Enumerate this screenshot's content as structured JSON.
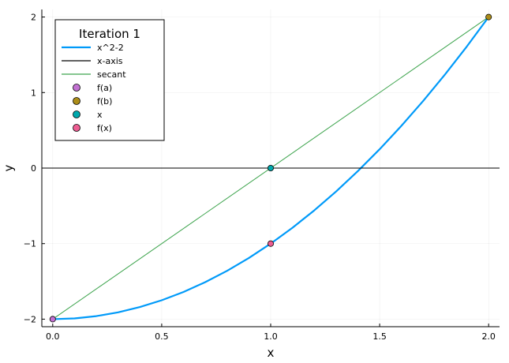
{
  "chart_data": {
    "type": "line",
    "xlabel": "x",
    "ylabel": "y",
    "xlim": [
      -0.05,
      2.05
    ],
    "ylim": [
      -2.1,
      2.1
    ],
    "xticks": [
      0.0,
      0.5,
      1.0,
      1.5,
      2.0
    ],
    "xtick_labels": [
      "0.0",
      "0.5",
      "1.0",
      "1.5",
      "2.0"
    ],
    "yticks": [
      -2,
      -1,
      0,
      1,
      2
    ],
    "ytick_labels": [
      "−2",
      "−1",
      "0",
      "1",
      "2"
    ],
    "grid": true,
    "legend": {
      "title": "Iteration 1",
      "position": "top-left",
      "entries": [
        {
          "label": "x^2-2",
          "kind": "line",
          "color": "#009AF9"
        },
        {
          "label": "x-axis",
          "kind": "line",
          "color": "#000000"
        },
        {
          "label": "secant",
          "kind": "line",
          "color": "#3DA44D"
        },
        {
          "label": "f(a)",
          "kind": "marker",
          "color": "#C271D2"
        },
        {
          "label": "f(b)",
          "kind": "marker",
          "color": "#AC8D18"
        },
        {
          "label": "x",
          "kind": "marker",
          "color": "#00A9AD"
        },
        {
          "label": "f(x)",
          "kind": "marker",
          "color": "#ED5D92"
        }
      ]
    },
    "series": [
      {
        "name": "x^2-2",
        "type": "line",
        "color": "#009AF9",
        "x": [
          0.0,
          0.1,
          0.2,
          0.3,
          0.4,
          0.5,
          0.6,
          0.7,
          0.8,
          0.9,
          1.0,
          1.1,
          1.2,
          1.3,
          1.4,
          1.5,
          1.6,
          1.7,
          1.8,
          1.9,
          2.0
        ],
        "y": [
          -2.0,
          -1.99,
          -1.96,
          -1.91,
          -1.84,
          -1.75,
          -1.64,
          -1.51,
          -1.36,
          -1.19,
          -1.0,
          -0.79,
          -0.56,
          -0.31,
          -0.04,
          0.25,
          0.56,
          0.89,
          1.24,
          1.61,
          2.0
        ]
      },
      {
        "name": "x-axis",
        "type": "line",
        "color": "#000000",
        "x": [
          -0.05,
          2.05
        ],
        "y": [
          0,
          0
        ]
      },
      {
        "name": "secant",
        "type": "line",
        "color": "#3DA44D",
        "x": [
          0.0,
          2.0
        ],
        "y": [
          -2.0,
          2.0
        ]
      },
      {
        "name": "f(a)",
        "type": "scatter",
        "color": "#C271D2",
        "x": [
          0.0
        ],
        "y": [
          -2.0
        ]
      },
      {
        "name": "f(b)",
        "type": "scatter",
        "color": "#AC8D18",
        "x": [
          2.0
        ],
        "y": [
          2.0
        ]
      },
      {
        "name": "x",
        "type": "scatter",
        "color": "#00A9AD",
        "x": [
          1.0
        ],
        "y": [
          0.0
        ]
      },
      {
        "name": "f(x)",
        "type": "scatter",
        "color": "#ED5D92",
        "x": [
          1.0
        ],
        "y": [
          -1.0
        ]
      }
    ]
  }
}
